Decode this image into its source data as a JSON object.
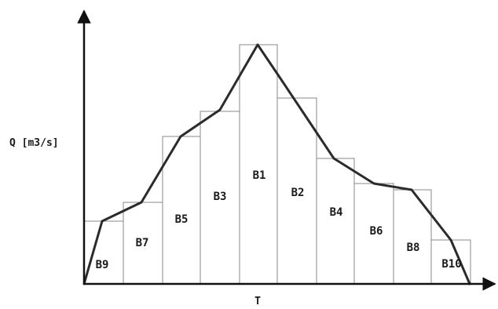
{
  "diagram": {
    "y_axis_label": "Q [m3/s]",
    "x_axis_label": "T",
    "bars": [
      {
        "label": "B9"
      },
      {
        "label": "B7"
      },
      {
        "label": "B5"
      },
      {
        "label": "B3"
      },
      {
        "label": "B1"
      },
      {
        "label": "B2"
      },
      {
        "label": "B4"
      },
      {
        "label": "B6"
      },
      {
        "label": "B8"
      },
      {
        "label": "B10"
      }
    ]
  }
}
